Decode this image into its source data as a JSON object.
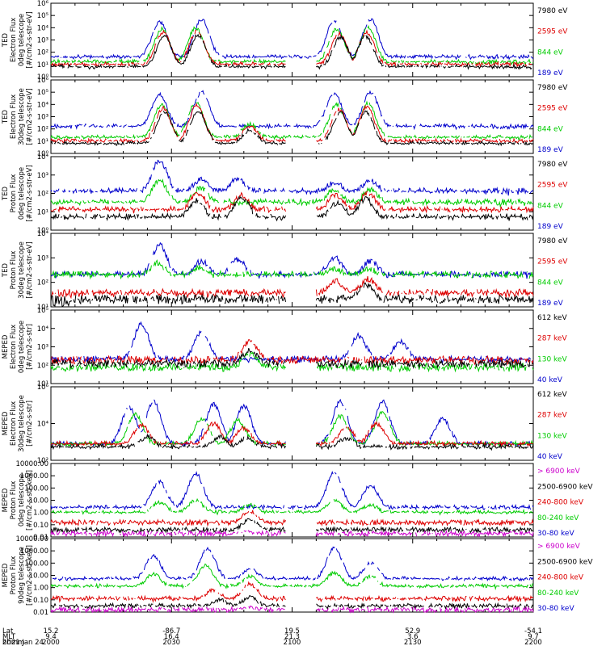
{
  "chart_data": [
    {
      "type": "line",
      "ylabel": [
        "TED",
        "Electron Flux",
        "0deg telescope",
        "[#/cm2-s-str-eV]"
      ],
      "yticks": [
        "10⁰",
        "10¹",
        "10²",
        "10³",
        "10⁴",
        "10⁵",
        "10⁶"
      ],
      "ylim": [
        0,
        6
      ],
      "scale": "log",
      "legend": [
        {
          "label": "7980 eV",
          "color": "#000000"
        },
        {
          "label": "2595 eV",
          "color": "#dd0000"
        },
        {
          "label": "844 eV",
          "color": "#00cc00"
        },
        {
          "label": "189 eV",
          "color": "#0000cc"
        }
      ],
      "series": [
        {
          "color": "#0000cc",
          "baseline": 1.5,
          "peaks": [
            [
              9.0,
              4.5
            ],
            [
              12.5,
              4.7
            ],
            [
              23.5,
              4.6
            ],
            [
              26.5,
              4.7
            ]
          ]
        },
        {
          "color": "#00cc00",
          "baseline": 1.1,
          "peaks": [
            [
              9.2,
              3.9
            ],
            [
              12.0,
              4.0
            ],
            [
              23.7,
              3.9
            ],
            [
              26.3,
              4.0
            ]
          ]
        },
        {
          "color": "#dd0000",
          "baseline": 0.9,
          "peaks": [
            [
              9.3,
              3.6
            ],
            [
              12.1,
              3.7
            ],
            [
              23.9,
              3.5
            ],
            [
              26.2,
              3.6
            ]
          ]
        },
        {
          "color": "#000000",
          "baseline": 0.7,
          "peaks": [
            [
              9.4,
              3.3
            ],
            [
              12.2,
              3.4
            ],
            [
              24.0,
              3.2
            ],
            [
              26.1,
              3.3
            ]
          ]
        }
      ]
    },
    {
      "type": "line",
      "ylabel": [
        "TED",
        "Electron Flux",
        "30deg telescope",
        "[#/cm2-s-str-eV]"
      ],
      "yticks": [
        "10⁰",
        "10¹",
        "10²",
        "10³",
        "10⁴",
        "10⁵",
        "10⁶"
      ],
      "ylim": [
        0,
        6
      ],
      "scale": "log",
      "legend": [
        {
          "label": "7980 eV",
          "color": "#000000"
        },
        {
          "label": "2595 eV",
          "color": "#dd0000"
        },
        {
          "label": "844 eV",
          "color": "#00cc00"
        },
        {
          "label": "189 eV",
          "color": "#0000cc"
        }
      ],
      "series": [
        {
          "color": "#0000cc",
          "baseline": 2.1,
          "peaks": [
            [
              9.0,
              4.8
            ],
            [
              12.5,
              5.0
            ],
            [
              23.5,
              4.9
            ],
            [
              26.5,
              5.0
            ]
          ]
        },
        {
          "color": "#00cc00",
          "baseline": 1.2,
          "peaks": [
            [
              9.2,
              4.0
            ],
            [
              12.0,
              4.2
            ],
            [
              16.5,
              2.4
            ],
            [
              23.7,
              4.0
            ],
            [
              26.3,
              4.1
            ]
          ]
        },
        {
          "color": "#dd0000",
          "baseline": 0.9,
          "peaks": [
            [
              9.3,
              3.7
            ],
            [
              12.1,
              3.9
            ],
            [
              16.5,
              2.2
            ],
            [
              23.9,
              3.6
            ],
            [
              26.2,
              3.8
            ]
          ]
        },
        {
          "color": "#000000",
          "baseline": 0.7,
          "peaks": [
            [
              9.4,
              3.4
            ],
            [
              12.2,
              3.5
            ],
            [
              16.5,
              1.9
            ],
            [
              24.0,
              3.3
            ],
            [
              26.1,
              3.4
            ]
          ]
        }
      ]
    },
    {
      "type": "line",
      "ylabel": [
        "TED",
        "Proton Flux",
        "0deg telescope",
        "[#/cm2-s-str-eV]"
      ],
      "yticks": [
        "10⁰",
        "10¹",
        "10²",
        "10³",
        "10⁴"
      ],
      "ylim": [
        0,
        4
      ],
      "scale": "log",
      "legend": [
        {
          "label": "7980 eV",
          "color": "#000000"
        },
        {
          "label": "2595 eV",
          "color": "#dd0000"
        },
        {
          "label": "844 eV",
          "color": "#00cc00"
        },
        {
          "label": "189 eV",
          "color": "#0000cc"
        }
      ],
      "series": [
        {
          "color": "#0000cc",
          "baseline": 2.0,
          "peaks": [
            [
              9.0,
              3.8
            ],
            [
              12.5,
              2.8
            ],
            [
              15.5,
              2.8
            ],
            [
              23.5,
              2.6
            ],
            [
              26.5,
              2.7
            ]
          ]
        },
        {
          "color": "#00cc00",
          "baseline": 1.4,
          "peaks": [
            [
              9.0,
              2.7
            ],
            [
              12.4,
              2.3
            ],
            [
              23.5,
              2.2
            ],
            [
              26.5,
              2.2
            ]
          ]
        },
        {
          "color": "#dd0000",
          "baseline": 1.0,
          "peaks": [
            [
              12.2,
              2.0
            ],
            [
              15.8,
              1.9
            ],
            [
              23.6,
              1.9
            ],
            [
              26.3,
              2.0
            ]
          ]
        },
        {
          "color": "#000000",
          "baseline": 0.6,
          "peaks": [
            [
              12.1,
              1.6
            ],
            [
              15.8,
              1.8
            ],
            [
              23.8,
              1.5
            ],
            [
              26.1,
              1.7
            ]
          ]
        }
      ]
    },
    {
      "type": "line",
      "ylabel": [
        "TED",
        "Proton Flux",
        "30deg telescope",
        "[#/cm2-s-str-eV]"
      ],
      "yticks": [
        "10¹",
        "10²",
        "10³",
        "10⁴"
      ],
      "ylim": [
        0.5,
        4.2
      ],
      "scale": "log",
      "legend": [
        {
          "label": "7980 eV",
          "color": "#000000"
        },
        {
          "label": "2595 eV",
          "color": "#dd0000"
        },
        {
          "label": "844 eV",
          "color": "#00cc00"
        },
        {
          "label": "189 eV",
          "color": "#0000cc"
        }
      ],
      "series": [
        {
          "color": "#0000cc",
          "baseline": 2.0,
          "peaks": [
            [
              9.0,
              3.6
            ],
            [
              12.5,
              2.8
            ],
            [
              15.5,
              2.9
            ],
            [
              23.5,
              3.0
            ],
            [
              26.5,
              2.8
            ]
          ]
        },
        {
          "color": "#00cc00",
          "baseline": 2.0,
          "peaks": [
            [
              8.8,
              2.7
            ],
            [
              12.3,
              2.5
            ],
            [
              23.5,
              2.4
            ],
            [
              26.4,
              2.4
            ]
          ]
        },
        {
          "color": "#dd0000",
          "baseline": 1.1,
          "peaks": [
            [
              23.6,
              1.8
            ],
            [
              26.3,
              1.9
            ]
          ]
        },
        {
          "color": "#000000",
          "baseline": 0.8,
          "peaks": [
            [
              26.1,
              1.6
            ]
          ]
        }
      ]
    },
    {
      "type": "line",
      "ylabel": [
        "MEPED",
        "Electron Flux",
        "0deg telescope",
        "[#/cm2-s-str]"
      ],
      "yticks": [
        "10¹",
        "10²",
        "10³",
        "10⁴",
        "10⁵"
      ],
      "ylim": [
        1,
        5
      ],
      "scale": "log",
      "legend": [
        {
          "label": "612 keV",
          "color": "#000000"
        },
        {
          "label": "287 keV",
          "color": "#dd0000"
        },
        {
          "label": "130 keV",
          "color": "#00cc00"
        },
        {
          "label": "40 keV",
          "color": "#0000cc"
        }
      ],
      "series": [
        {
          "color": "#0000cc",
          "baseline": 2.2,
          "peaks": [
            [
              7.5,
              4.2
            ],
            [
              12.5,
              3.8
            ],
            [
              25.5,
              3.6
            ],
            [
              29.0,
              3.3
            ]
          ]
        },
        {
          "color": "#00cc00",
          "baseline": 1.8,
          "peaks": [
            [
              16.5,
              2.6
            ]
          ]
        },
        {
          "color": "#dd0000",
          "baseline": 2.2,
          "peaks": [
            [
              16.5,
              3.3
            ]
          ]
        },
        {
          "color": "#000000",
          "baseline": 2.0,
          "peaks": [
            [
              16.5,
              2.8
            ]
          ]
        }
      ]
    },
    {
      "type": "line",
      "ylabel": [
        "MEPED",
        "Electron Flux",
        "30deg telescope",
        "[#/cm2-s-str]"
      ],
      "yticks": [
        "10²",
        "10⁴",
        "10⁶"
      ],
      "ylim": [
        1,
        6
      ],
      "scale": "log",
      "legend": [
        {
          "label": "612 keV",
          "color": "#000000"
        },
        {
          "label": "287 keV",
          "color": "#dd0000"
        },
        {
          "label": "130 keV",
          "color": "#00cc00"
        },
        {
          "label": "40 keV",
          "color": "#0000cc"
        }
      ],
      "series": [
        {
          "color": "#0000cc",
          "baseline": 2.0,
          "peaks": [
            [
              6.5,
              4.6
            ],
            [
              8.5,
              5.0
            ],
            [
              13.5,
              4.8
            ],
            [
              16.0,
              4.7
            ],
            [
              24.0,
              5.0
            ],
            [
              27.5,
              5.0
            ],
            [
              32.5,
              3.8
            ]
          ]
        },
        {
          "color": "#00cc00",
          "baseline": 2.0,
          "peaks": [
            [
              7.0,
              4.1
            ],
            [
              12.5,
              3.8
            ],
            [
              15.5,
              3.7
            ],
            [
              24.0,
              4.0
            ],
            [
              27.5,
              4.3
            ]
          ]
        },
        {
          "color": "#dd0000",
          "baseline": 2.0,
          "peaks": [
            [
              7.5,
              3.4
            ],
            [
              13.5,
              3.5
            ],
            [
              16.0,
              3.2
            ],
            [
              24.5,
              3.2
            ],
            [
              27.0,
              3.5
            ]
          ]
        },
        {
          "color": "#000000",
          "baseline": 1.8,
          "peaks": [
            [
              8.0,
              2.6
            ],
            [
              14.0,
              2.6
            ],
            [
              16.2,
              2.5
            ],
            [
              24.5,
              2.5
            ]
          ]
        }
      ]
    },
    {
      "type": "line",
      "ylabel": [
        "MEPED",
        "Proton Flux",
        "0deg telescope",
        "[#/cm2-s-str-keV]"
      ],
      "yticks": [
        "0.01",
        "0.10",
        "1.00",
        "10.00",
        "100.00",
        "1000.00",
        "10000.00"
      ],
      "ylim": [
        -2,
        4
      ],
      "scale": "log",
      "legend": [
        {
          "label": "> 6900 keV",
          "color": "#cc00cc"
        },
        {
          "label": "2500-6900 keV",
          "color": "#000000"
        },
        {
          "label": "240-800 keV",
          "color": "#dd0000"
        },
        {
          "label": "80-240 keV",
          "color": "#00cc00"
        },
        {
          "label": "30-80 keV",
          "color": "#0000cc"
        }
      ],
      "series": [
        {
          "color": "#0000cc",
          "baseline": 0.3,
          "peaks": [
            [
              9.0,
              2.5
            ],
            [
              12.0,
              3.2
            ],
            [
              23.5,
              3.3
            ],
            [
              26.5,
              2.2
            ]
          ]
        },
        {
          "color": "#00cc00",
          "baseline": -0.1,
          "peaks": [
            [
              9.0,
              0.8
            ],
            [
              12.0,
              1.0
            ],
            [
              16.5,
              0.6
            ],
            [
              23.5,
              1.0
            ],
            [
              26.5,
              0.6
            ]
          ]
        },
        {
          "color": "#dd0000",
          "baseline": -0.9,
          "peaks": [
            [
              16.5,
              0.1
            ]
          ]
        },
        {
          "color": "#000000",
          "baseline": -1.5,
          "peaks": [
            [
              16.5,
              -0.6
            ]
          ]
        },
        {
          "color": "#cc00cc",
          "baseline": -1.8,
          "peaks": [
            [
              16.5,
              -1.6
            ]
          ]
        }
      ]
    },
    {
      "type": "line",
      "ylabel": [
        "MEPED",
        "Proton Flux",
        "90deg telescope",
        "[#/cm2-s-str-keV]"
      ],
      "yticks": [
        "0.01",
        "0.10",
        "1.00",
        "10.00",
        "100.00",
        "1000.00",
        "10000.00"
      ],
      "ylim": [
        -2,
        4
      ],
      "scale": "log",
      "legend": [
        {
          "label": "> 6900 keV",
          "color": "#cc00cc"
        },
        {
          "label": "2500-6900 keV",
          "color": "#000000"
        },
        {
          "label": "240-800 keV",
          "color": "#dd0000"
        },
        {
          "label": "80-240 keV",
          "color": "#00cc00"
        },
        {
          "label": "30-80 keV",
          "color": "#0000cc"
        }
      ],
      "series": [
        {
          "color": "#0000cc",
          "baseline": 0.6,
          "peaks": [
            [
              8.5,
              2.6
            ],
            [
              13.0,
              3.2
            ],
            [
              16.5,
              1.5
            ],
            [
              23.5,
              3.3
            ],
            [
              26.5,
              2.0
            ]
          ]
        },
        {
          "color": "#00cc00",
          "baseline": 0.0,
          "peaks": [
            [
              8.5,
              1.1
            ],
            [
              12.8,
              1.8
            ],
            [
              16.5,
              0.9
            ],
            [
              23.5,
              1.2
            ],
            [
              26.5,
              0.9
            ]
          ]
        },
        {
          "color": "#dd0000",
          "baseline": -1.0,
          "peaks": [
            [
              13.5,
              -0.2
            ],
            [
              16.5,
              0.3
            ]
          ]
        },
        {
          "color": "#000000",
          "baseline": -1.6,
          "peaks": [
            [
              14.0,
              -1.0
            ],
            [
              16.5,
              -0.8
            ]
          ]
        },
        {
          "color": "#cc00cc",
          "baseline": -1.9,
          "peaks": [
            [
              16.5,
              -1.6
            ]
          ]
        }
      ]
    }
  ],
  "xaxis": {
    "row_labels": [
      "Lat",
      "MLT",
      "hhmm"
    ],
    "ticks": [
      {
        "x": 0,
        "lat": "15.2",
        "mlt": "9.4",
        "hhmm": "2000"
      },
      {
        "x": 10,
        "lat": "-86.7",
        "mlt": "16.4",
        "hhmm": "2030"
      },
      {
        "x": 20,
        "lat": "19.5",
        "mlt": "21.3",
        "hhmm": "2100"
      },
      {
        "x": 30,
        "lat": "52.9",
        "mlt": "3.6",
        "hhmm": "2130"
      },
      {
        "x": 40,
        "lat": "-54.1",
        "mlt": "9.7",
        "hhmm": "2200"
      }
    ],
    "date": "2021 Jan 24",
    "range": [
      0,
      40
    ]
  }
}
